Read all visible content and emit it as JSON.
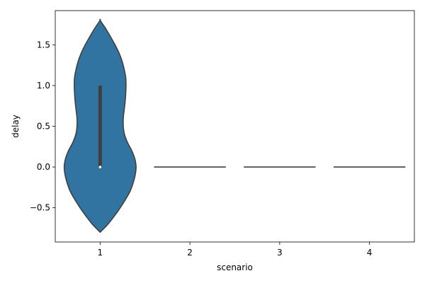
{
  "chart_data": {
    "type": "violin",
    "xlabel": "scenario",
    "ylabel": "delay",
    "categories": [
      "1",
      "2",
      "3",
      "4"
    ],
    "ylim": [
      -0.92,
      1.92
    ],
    "y_ticks": [
      {
        "value": -0.5,
        "label": "−0.5"
      },
      {
        "value": 0.0,
        "label": "0.0"
      },
      {
        "value": 0.5,
        "label": "0.5"
      },
      {
        "value": 1.0,
        "label": "1.0"
      },
      {
        "value": 1.5,
        "label": "1.5"
      }
    ],
    "grid": false,
    "violin_color": "#3274a1",
    "edge_color": "#3f3f3f",
    "violins": [
      {
        "category": "1",
        "min": -0.8,
        "max": 1.8,
        "q1": 0.0,
        "median": 0.0,
        "q3": 1.0,
        "density": [
          [
            -0.8,
            0.0
          ],
          [
            -0.7,
            0.26
          ],
          [
            -0.6,
            0.47
          ],
          [
            -0.5,
            0.66
          ],
          [
            -0.4,
            0.83
          ],
          [
            -0.3,
            0.98
          ],
          [
            -0.2,
            1.08
          ],
          [
            -0.1,
            1.15
          ],
          [
            0.0,
            1.18
          ],
          [
            0.1,
            1.14
          ],
          [
            0.2,
            1.04
          ],
          [
            0.3,
            0.9
          ],
          [
            0.4,
            0.8
          ],
          [
            0.5,
            0.76
          ],
          [
            0.6,
            0.76
          ],
          [
            0.7,
            0.79
          ],
          [
            0.8,
            0.82
          ],
          [
            0.9,
            0.84
          ],
          [
            1.0,
            0.85
          ],
          [
            1.1,
            0.84
          ],
          [
            1.2,
            0.79
          ],
          [
            1.3,
            0.72
          ],
          [
            1.4,
            0.62
          ],
          [
            1.5,
            0.49
          ],
          [
            1.6,
            0.34
          ],
          [
            1.7,
            0.18
          ],
          [
            1.8,
            0.0
          ]
        ]
      },
      {
        "category": "2",
        "min": 0.0,
        "max": 0.0,
        "median": 0.0
      },
      {
        "category": "3",
        "min": 0.0,
        "max": 0.0,
        "median": 0.0
      },
      {
        "category": "4",
        "min": 0.0,
        "max": 0.0,
        "median": 0.0
      }
    ]
  }
}
